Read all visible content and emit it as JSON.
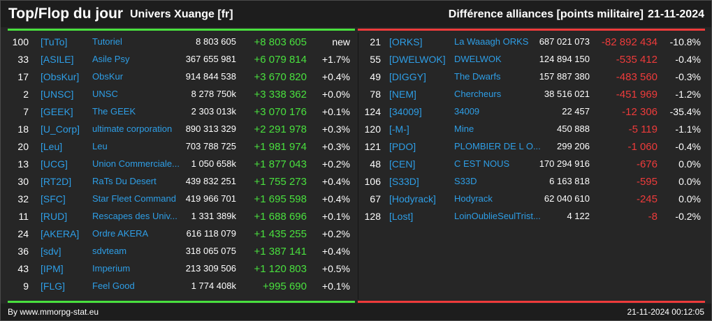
{
  "header": {
    "title": "Top/Flop du jour",
    "universe": "Univers Xuange [fr]",
    "right_title": "Différence alliances [points militaire]",
    "date": "21-11-2024"
  },
  "colors": {
    "positive": "#49e03e",
    "negative": "#ee3b3b",
    "link": "#2e9ee6",
    "top_line": "#49e03e",
    "flop_line": "#ee3b3b"
  },
  "top": [
    {
      "rank": "100",
      "tag": "[TuTo]",
      "name": "Tutoriel",
      "points": "8 803 605",
      "diff": "+8 803 605",
      "pct": "new"
    },
    {
      "rank": "33",
      "tag": "[ASILE]",
      "name": "Asile Psy",
      "points": "367 655 981",
      "diff": "+6 079 814",
      "pct": "+1.7%"
    },
    {
      "rank": "17",
      "tag": "[ObsKur]",
      "name": "ObsKur",
      "points": "914 844 538",
      "diff": "+3 670 820",
      "pct": "+0.4%"
    },
    {
      "rank": "2",
      "tag": "[UNSC]",
      "name": "UNSC",
      "points": "8 278 750k",
      "diff": "+3 338 362",
      "pct": "+0.0%"
    },
    {
      "rank": "7",
      "tag": "[GEEK]",
      "name": "The GEEK",
      "points": "2 303 013k",
      "diff": "+3 070 176",
      "pct": "+0.1%"
    },
    {
      "rank": "18",
      "tag": "[U_Corp]",
      "name": "ultimate corporation",
      "points": "890 313 329",
      "diff": "+2 291 978",
      "pct": "+0.3%"
    },
    {
      "rank": "20",
      "tag": "[Leu]",
      "name": "Leu",
      "points": "703 788 725",
      "diff": "+1 981 974",
      "pct": "+0.3%"
    },
    {
      "rank": "13",
      "tag": "[UCG]",
      "name": "Union Commerciale...",
      "points": "1 050 658k",
      "diff": "+1 877 043",
      "pct": "+0.2%"
    },
    {
      "rank": "30",
      "tag": "[RT2D]",
      "name": "RaTs Du Desert",
      "points": "439 832 251",
      "diff": "+1 755 273",
      "pct": "+0.4%"
    },
    {
      "rank": "32",
      "tag": "[SFC]",
      "name": "Star Fleet Command",
      "points": "419 966 701",
      "diff": "+1 695 598",
      "pct": "+0.4%"
    },
    {
      "rank": "11",
      "tag": "[RUD]",
      "name": "Rescapes des Univ...",
      "points": "1 331 389k",
      "diff": "+1 688 696",
      "pct": "+0.1%"
    },
    {
      "rank": "24",
      "tag": "[AKERA]",
      "name": "Ordre AKERA",
      "points": "616 118 079",
      "diff": "+1 435 255",
      "pct": "+0.2%"
    },
    {
      "rank": "36",
      "tag": "[sdv]",
      "name": "sdvteam",
      "points": "318 065 075",
      "diff": "+1 387 141",
      "pct": "+0.4%"
    },
    {
      "rank": "43",
      "tag": "[IPM]",
      "name": "Imperium",
      "points": "213 309 506",
      "diff": "+1 120 803",
      "pct": "+0.5%"
    },
    {
      "rank": "9",
      "tag": "[FLG]",
      "name": "Feel Good",
      "points": "1 774 408k",
      "diff": "+995 690",
      "pct": "+0.1%"
    }
  ],
  "flop": [
    {
      "rank": "21",
      "tag": "[ORKS]",
      "name": "La Waaagh ORKS",
      "points": "687 021 073",
      "diff": "-82 892 434",
      "pct": "-10.8%"
    },
    {
      "rank": "55",
      "tag": "[DWELWOK]",
      "name": "DWELWOK",
      "points": "124 894 150",
      "diff": "-535 412",
      "pct": "-0.4%"
    },
    {
      "rank": "49",
      "tag": "[DIGGY]",
      "name": "The Dwarfs",
      "points": "157 887 380",
      "diff": "-483 560",
      "pct": "-0.3%"
    },
    {
      "rank": "78",
      "tag": "[NEM]",
      "name": "Chercheurs",
      "points": "38 516 021",
      "diff": "-451 969",
      "pct": "-1.2%"
    },
    {
      "rank": "124",
      "tag": "[34009]",
      "name": "34009",
      "points": "22 457",
      "diff": "-12 306",
      "pct": "-35.4%"
    },
    {
      "rank": "120",
      "tag": "[-M-]",
      "name": "Mine",
      "points": "450 888",
      "diff": "-5 119",
      "pct": "-1.1%"
    },
    {
      "rank": "121",
      "tag": "[PDO]",
      "name": "PLOMBIER DE L O...",
      "points": "299 206",
      "diff": "-1 060",
      "pct": "-0.4%"
    },
    {
      "rank": "48",
      "tag": "[CEN]",
      "name": "C EST NOUS",
      "points": "170 294 916",
      "diff": "-676",
      "pct": "0.0%"
    },
    {
      "rank": "106",
      "tag": "[S33D]",
      "name": "S33D",
      "points": "6 163 818",
      "diff": "-595",
      "pct": "0.0%"
    },
    {
      "rank": "67",
      "tag": "[Hodyrack]",
      "name": "Hodyrack",
      "points": "62 040 610",
      "diff": "-245",
      "pct": "0.0%"
    },
    {
      "rank": "128",
      "tag": "[Lost]",
      "name": "LoinOublieSeulTrist...",
      "points": "4 122",
      "diff": "-8",
      "pct": "-0.2%"
    }
  ],
  "footer": {
    "source": "By www.mmorpg-stat.eu",
    "timestamp": "21-11-2024 00:12:05"
  }
}
